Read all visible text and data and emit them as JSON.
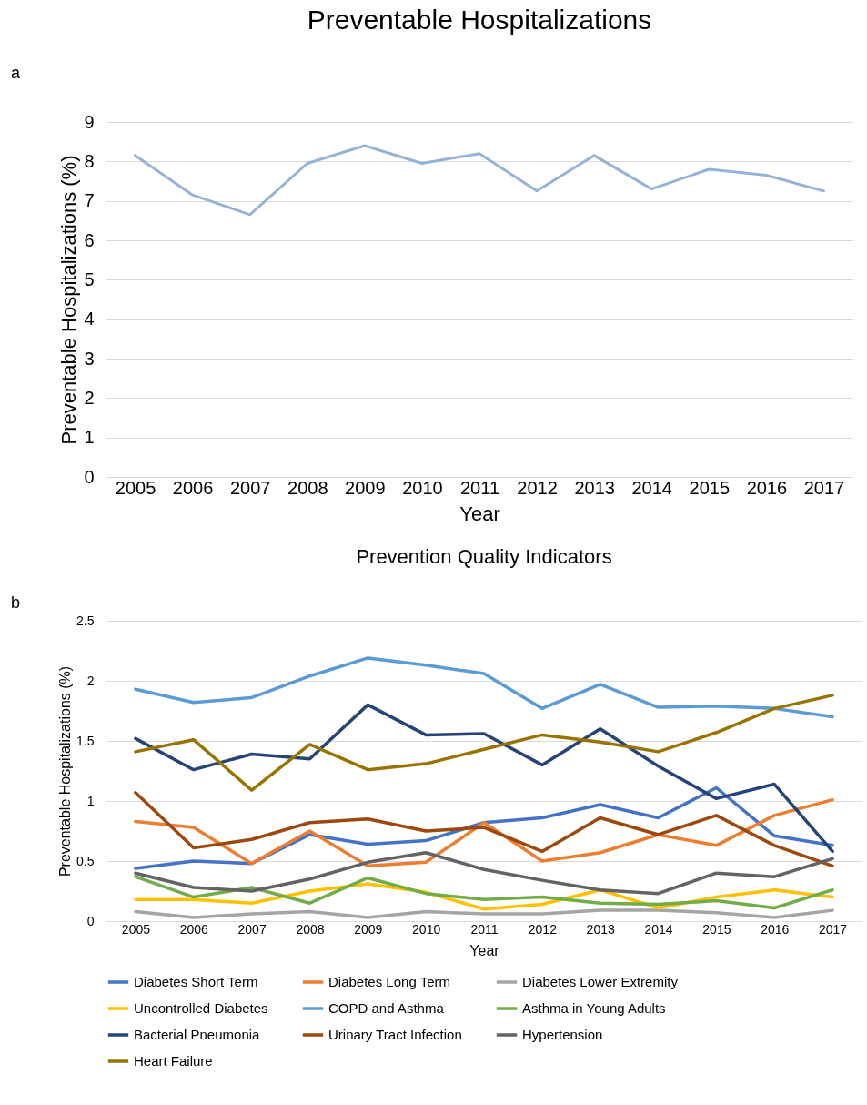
{
  "chart_data": [
    {
      "type": "line",
      "title": "Preventable Hospitalizations",
      "xlabel": "Year",
      "ylabel": "Preventable Hospitalizations (%)",
      "annotations": [
        "a"
      ],
      "categories": [
        "2005",
        "2006",
        "2007",
        "2008",
        "2009",
        "2010",
        "2011",
        "2012",
        "2013",
        "2014",
        "2015",
        "2016",
        "2017"
      ],
      "values": [
        8.15,
        7.15,
        6.65,
        7.95,
        8.4,
        7.95,
        8.2,
        7.25,
        8.15,
        7.3,
        7.8,
        7.65,
        7.25
      ],
      "color": "#95b3d7",
      "ylim": [
        0,
        9
      ],
      "yticks": [
        0,
        1,
        2,
        3,
        4,
        5,
        6,
        7,
        8,
        9
      ],
      "grid": "y",
      "legend": false
    },
    {
      "type": "line",
      "title": "Prevention Quality Indicators",
      "xlabel": "Year",
      "ylabel": "Preventable Hospitalizations (%)",
      "annotations": [
        "b"
      ],
      "categories": [
        "2005",
        "2006",
        "2007",
        "2008",
        "2009",
        "2010",
        "2011",
        "2012",
        "2013",
        "2014",
        "2015",
        "2016",
        "2017"
      ],
      "series": [
        {
          "name": "Diabetes Short Term",
          "color": "#4472c4",
          "values": [
            0.44,
            0.5,
            0.48,
            0.72,
            0.64,
            0.67,
            0.82,
            0.86,
            0.97,
            0.86,
            1.11,
            0.71,
            0.63
          ]
        },
        {
          "name": "Diabetes Long Term",
          "color": "#ed7d31",
          "values": [
            0.83,
            0.78,
            0.48,
            0.75,
            0.46,
            0.49,
            0.82,
            0.5,
            0.57,
            0.72,
            0.63,
            0.88,
            1.01
          ]
        },
        {
          "name": "Diabetes Lower Extremity",
          "color": "#a5a5a5",
          "values": [
            0.08,
            0.03,
            0.06,
            0.08,
            0.03,
            0.08,
            0.06,
            0.06,
            0.09,
            0.09,
            0.07,
            0.03,
            0.09
          ]
        },
        {
          "name": "Uncontrolled Diabetes",
          "color": "#ffc000",
          "values": [
            0.18,
            0.18,
            0.15,
            0.25,
            0.31,
            0.24,
            0.1,
            0.14,
            0.26,
            0.11,
            0.2,
            0.26,
            0.2
          ]
        },
        {
          "name": "COPD and Asthma",
          "color": "#5b9bd5",
          "values": [
            1.93,
            1.82,
            1.86,
            2.04,
            2.19,
            2.13,
            2.06,
            1.77,
            1.97,
            1.78,
            1.79,
            1.77,
            1.7
          ]
        },
        {
          "name": "Asthma in Young Adults",
          "color": "#70ad47",
          "values": [
            0.37,
            0.2,
            0.28,
            0.15,
            0.36,
            0.23,
            0.18,
            0.2,
            0.15,
            0.14,
            0.17,
            0.11,
            0.26
          ]
        },
        {
          "name": "Bacterial Pneumonia",
          "color": "#264478",
          "values": [
            1.52,
            1.26,
            1.39,
            1.35,
            1.8,
            1.55,
            1.56,
            1.3,
            1.6,
            1.29,
            1.02,
            1.14,
            0.58
          ]
        },
        {
          "name": "Urinary Tract Infection",
          "color": "#9e480e",
          "values": [
            1.07,
            0.61,
            0.68,
            0.82,
            0.85,
            0.75,
            0.78,
            0.58,
            0.86,
            0.72,
            0.88,
            0.63,
            0.46
          ]
        },
        {
          "name": "Hypertension",
          "color": "#636363",
          "values": [
            0.4,
            0.28,
            0.25,
            0.35,
            0.49,
            0.57,
            0.43,
            0.34,
            0.26,
            0.23,
            0.4,
            0.37,
            0.52
          ]
        },
        {
          "name": "Heart Failure",
          "color": "#997300",
          "values": [
            1.41,
            1.51,
            1.09,
            1.47,
            1.26,
            1.31,
            1.43,
            1.55,
            1.49,
            1.41,
            1.57,
            1.77,
            1.88
          ]
        }
      ],
      "ylim": [
        0,
        2.5
      ],
      "yticks": [
        0,
        0.5,
        1,
        1.5,
        2,
        2.5
      ],
      "grid": "y",
      "legend": "bottom"
    }
  ]
}
